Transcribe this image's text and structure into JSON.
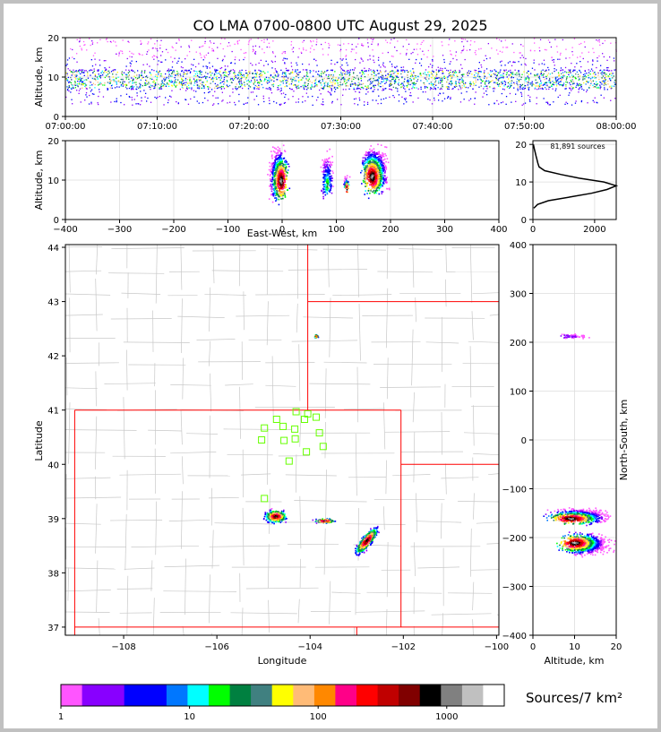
{
  "title": "CO LMA 0700-0800 UTC August 29, 2025",
  "chart_data": [
    {
      "id": "time-height",
      "type": "scatter",
      "title": "CO LMA 0700-0800 UTC August 29, 2025",
      "ylabel": "Altitude, km",
      "xlim": [
        "07:00:00",
        "08:00:00"
      ],
      "ylim": [
        0,
        20
      ],
      "xticks": [
        "07:00:00",
        "07:10:00",
        "07:20:00",
        "07:30:00",
        "07:40:00",
        "07:50:00",
        "08:00:00"
      ],
      "yticks": [
        "0",
        "10",
        "20"
      ],
      "grid": true,
      "source_altitude_band_km": [
        3,
        20
      ],
      "densest_altitude_km": [
        7,
        12
      ]
    },
    {
      "id": "ew-height",
      "type": "scatter",
      "xlabel": "East-West, km",
      "ylabel": "Altitude, km",
      "xlim": [
        -400,
        400
      ],
      "ylim": [
        0,
        20
      ],
      "xticks": [
        "−400",
        "−300",
        "−200",
        "−100",
        "0",
        "100",
        "200",
        "300",
        "400"
      ],
      "yticks": [
        "0",
        "10",
        "20"
      ],
      "grid": true,
      "clusters": [
        {
          "x_range": [
            -30,
            15
          ],
          "alt_range": [
            3,
            20
          ],
          "peak": [
            -3,
            10
          ]
        },
        {
          "x_range": [
            68,
            95
          ],
          "alt_range": [
            4,
            19
          ],
          "peak": [
            82,
            9
          ]
        },
        {
          "x_range": [
            110,
            125
          ],
          "alt_range": [
            6,
            12
          ],
          "peak": [
            118,
            8
          ]
        },
        {
          "x_range": [
            140,
            200
          ],
          "alt_range": [
            5,
            20
          ],
          "peak": [
            165,
            11
          ]
        }
      ]
    },
    {
      "id": "alt-histogram",
      "type": "line",
      "annotation": "81,891 sources",
      "xlim": [
        0,
        2700
      ],
      "ylim": [
        0,
        21
      ],
      "xticks": [
        "0",
        "2000"
      ],
      "yticks": [
        "0",
        "10",
        "20"
      ],
      "grid": true,
      "profile": [
        {
          "alt": 3,
          "count": 30
        },
        {
          "alt": 4,
          "count": 150
        },
        {
          "alt": 5,
          "count": 500
        },
        {
          "alt": 6,
          "count": 1200
        },
        {
          "alt": 7,
          "count": 1900
        },
        {
          "alt": 8,
          "count": 2400
        },
        {
          "alt": 9,
          "count": 2700
        },
        {
          "alt": 10,
          "count": 2300
        },
        {
          "alt": 11,
          "count": 1500
        },
        {
          "alt": 12,
          "count": 900
        },
        {
          "alt": 13,
          "count": 380
        },
        {
          "alt": 14,
          "count": 200
        },
        {
          "alt": 15,
          "count": 160
        },
        {
          "alt": 16,
          "count": 130
        },
        {
          "alt": 17,
          "count": 100
        },
        {
          "alt": 18,
          "count": 70
        },
        {
          "alt": 19,
          "count": 40
        },
        {
          "alt": 20,
          "count": 15
        }
      ]
    },
    {
      "id": "plan-view",
      "type": "scatter",
      "xlabel": "Longitude",
      "ylabel": "Latitude",
      "xlim": [
        -109.25,
        -99.95
      ],
      "ylim": [
        36.85,
        44.05
      ],
      "xticks": [
        "−108",
        "−106",
        "−104",
        "−102",
        "−100"
      ],
      "yticks": [
        "37",
        "38",
        "39",
        "40",
        "41",
        "42",
        "43",
        "44"
      ],
      "stations": [
        {
          "lon": -104.3,
          "lat": 40.97
        },
        {
          "lon": -104.05,
          "lat": 40.93
        },
        {
          "lon": -103.87,
          "lat": 40.87
        },
        {
          "lon": -104.12,
          "lat": 40.83
        },
        {
          "lon": -104.72,
          "lat": 40.83
        },
        {
          "lon": -104.58,
          "lat": 40.7
        },
        {
          "lon": -104.98,
          "lat": 40.67
        },
        {
          "lon": -104.33,
          "lat": 40.65
        },
        {
          "lon": -103.8,
          "lat": 40.58
        },
        {
          "lon": -104.32,
          "lat": 40.47
        },
        {
          "lon": -105.04,
          "lat": 40.45
        },
        {
          "lon": -104.56,
          "lat": 40.44
        },
        {
          "lon": -103.72,
          "lat": 40.33
        },
        {
          "lon": -104.08,
          "lat": 40.23
        },
        {
          "lon": -104.45,
          "lat": 40.06
        },
        {
          "lon": -104.98,
          "lat": 39.37
        }
      ],
      "clusters": [
        {
          "lon": -104.75,
          "lat": 39.05,
          "r_lon": 0.3,
          "r_lat": 0.15
        },
        {
          "lon": -103.7,
          "lat": 38.97,
          "r_lon": 0.28,
          "r_lat": 0.06
        },
        {
          "lon": -102.8,
          "lat": 38.6,
          "r_lon": 0.35,
          "r_lat": 0.3
        },
        {
          "lon": -103.88,
          "lat": 42.37,
          "r_lon": 0.06,
          "r_lat": 0.04
        }
      ]
    },
    {
      "id": "ns-height",
      "type": "scatter",
      "xlabel": "Altitude, km",
      "ylabel": "North-South, km",
      "xlim": [
        0,
        20
      ],
      "ylim": [
        -400,
        400
      ],
      "xticks": [
        "0",
        "10",
        "20"
      ],
      "yticks": [
        "−400",
        "−300",
        "−200",
        "−100",
        "0",
        "100",
        "200",
        "300",
        "400"
      ],
      "grid": true,
      "clusters": [
        {
          "alt_range": [
            2,
            20
          ],
          "ns_range": [
            -175,
            -135
          ],
          "peak": [
            9,
            -160
          ]
        },
        {
          "alt_range": [
            5,
            20
          ],
          "ns_range": [
            -240,
            -185
          ],
          "peak": [
            10,
            -210
          ]
        },
        {
          "alt_range": [
            5,
            15
          ],
          "ns_range": [
            207,
            220
          ],
          "peak": [
            8,
            213
          ]
        }
      ]
    },
    {
      "id": "colorbar",
      "type": "heatmap",
      "label": "Sources/7 km²",
      "ticks": [
        "1",
        "10",
        "100",
        "1000"
      ],
      "tick_values": [
        1,
        10,
        100,
        1000
      ],
      "range": [
        1,
        2800
      ],
      "colors": [
        "#ff55ff",
        "#8800ff",
        "#8800ff",
        "#0000ff",
        "#0000ff",
        "#0077ff",
        "#00ffff",
        "#00ff00",
        "#008040",
        "#408080",
        "#ffff00",
        "#ffbb77",
        "#ff8800",
        "#ff0088",
        "#ff0000",
        "#c00000",
        "#800000",
        "#000000",
        "#808080",
        "#c0c0c0",
        "#ffffff"
      ]
    }
  ]
}
